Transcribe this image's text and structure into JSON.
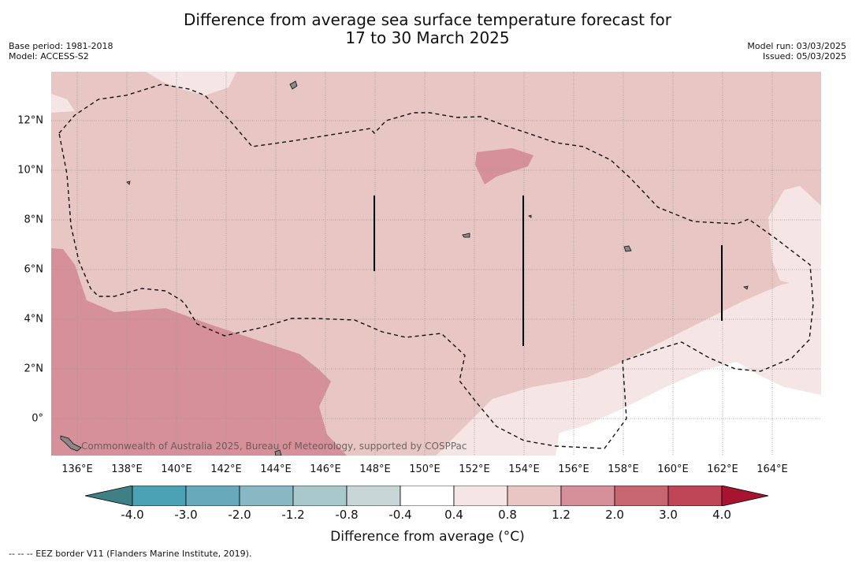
{
  "header": {
    "title_line1": "Difference from average sea surface temperature forecast for",
    "title_line2": "17 to 30 March 2025",
    "base_period": "Base period: 1981-2018",
    "model": "Model: ACCESS-S2",
    "model_run": "Model run: 03/03/2025",
    "issued": "Issued: 05/03/2025"
  },
  "map": {
    "lon_ticks": [
      "136°E",
      "138°E",
      "140°E",
      "142°E",
      "144°E",
      "146°E",
      "148°E",
      "150°E",
      "152°E",
      "154°E",
      "156°E",
      "158°E",
      "160°E",
      "162°E",
      "164°E"
    ],
    "lat_ticks": [
      "12°N",
      "10°N",
      "8°N",
      "6°N",
      "4°N",
      "2°N",
      "0°"
    ],
    "credit": "Commonwealth of Australia 2025, Bureau of Meteorology, supported by COSPPac"
  },
  "colorbar": {
    "title": "Difference from average (°C)",
    "labels": [
      "-4.0",
      "-3.0",
      "-2.0",
      "-1.2",
      "-0.8",
      "-0.4",
      "0.4",
      "0.8",
      "1.2",
      "2.0",
      "3.0",
      "4.0"
    ],
    "colors": {
      "under": "#3f7f86",
      "bins": [
        "#4aa2b4",
        "#68aabb",
        "#89b7c4",
        "#a9c8cc",
        "#c9d6d8",
        "#ffffff",
        "#f5e6e5",
        "#e8c6c3",
        "#d5909a",
        "#c76670",
        "#be4656"
      ],
      "over": "#a8142f"
    }
  },
  "footer": {
    "legend_text": "--  --  -- EEZ border V11 (Flanders Marine Institute, 2019)."
  }
}
